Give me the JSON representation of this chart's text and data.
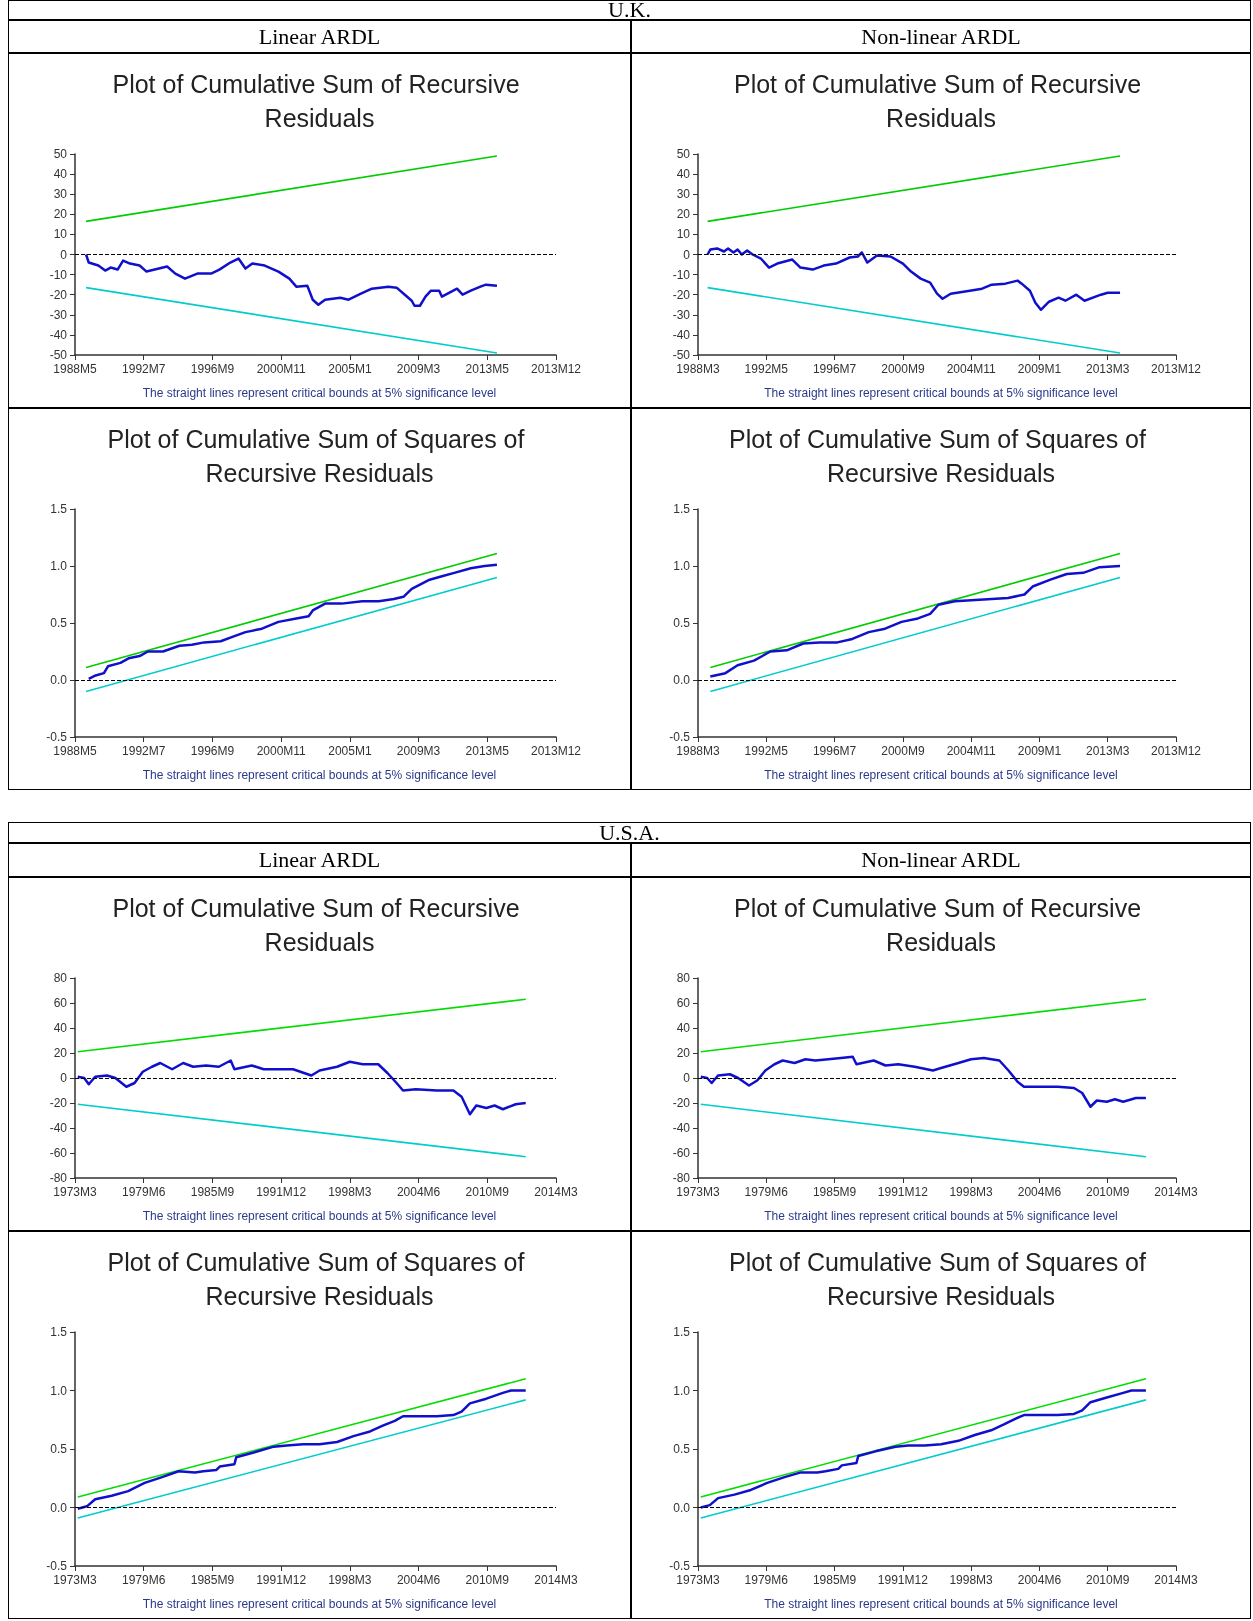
{
  "chart_data": [
    {
      "type": "other",
      "title": "U.K."
    },
    {
      "type": "other",
      "title": "Linear ARDL"
    },
    {
      "type": "other",
      "title": "Non-linear ARDL"
    },
    {
      "type": "line",
      "title": "Plot of Cumulative Sum of Recursive Residuals",
      "marker": "none",
      "xlim": [
        "1988-05",
        "2017-07"
      ],
      "xticks": [
        {
          "value": "1988-05",
          "label": "1988M5"
        },
        {
          "value": "1992-07",
          "label": "1992M7"
        },
        {
          "value": "1996-09",
          "label": "1996M9"
        },
        {
          "value": "2000-11",
          "label": "2000M11"
        },
        {
          "value": "2005-01",
          "label": "2005M1"
        },
        {
          "value": "2009-03",
          "label": "2009M3"
        },
        {
          "value": "2013-05",
          "label": "2013M5"
        },
        {
          "value": "2017-07",
          "label": null
        }
      ],
      "ylim": [
        -50,
        50
      ],
      "yticks": [
        -50,
        -40,
        -30,
        -20,
        -10,
        0,
        10,
        20,
        30,
        40,
        50
      ],
      "ref_lines": [
        {
          "axis": "y",
          "value": 0,
          "color": "#000000",
          "line_style": "dashed"
        }
      ],
      "annotations": [
        "2013M12",
        "The straight lines represent critical bounds at 5% significance level"
      ],
      "series": [
        {
          "color": "#00cc00",
          "x": [
            "1989-01",
            "2013-12"
          ],
          "values": [
            16.5,
            49
          ]
        },
        {
          "color": "#00cccc",
          "x": [
            "1989-01",
            "2013-12"
          ],
          "values": [
            -16.5,
            -49
          ]
        },
        {
          "color": "#1010cc",
          "x": [
            "1989-01",
            "1989-03",
            "1989-10",
            "1990-03",
            "1990-07",
            "1990-12",
            "1991-04",
            "1991-09",
            "1992-04",
            "1992-09",
            "1993-03",
            "1993-12",
            "1994-06",
            "1995-01",
            "1995-10",
            "1996-08",
            "1997-02",
            "1997-10",
            "1998-04",
            "1998-09",
            "1999-02",
            "1999-11",
            "2000-09",
            "2001-05",
            "2001-10",
            "2002-06",
            "2002-10",
            "2003-02",
            "2003-07",
            "2004-06",
            "2004-12",
            "2005-09",
            "2006-05",
            "2007-05",
            "2007-11",
            "2008-05",
            "2008-10",
            "2008-12",
            "2009-04",
            "2009-08",
            "2009-12",
            "2010-06",
            "2010-08",
            "2011-07",
            "2011-11",
            "2012-05",
            "2012-12",
            "2013-04",
            "2013-12"
          ],
          "values": [
            0,
            -4,
            -5.5,
            -8,
            -6.5,
            -7.5,
            -3,
            -4.5,
            -5.5,
            -8.5,
            -7.5,
            -6,
            -9.5,
            -12,
            -9.5,
            -9.5,
            -7.5,
            -4,
            -2,
            -7,
            -4.5,
            -5.5,
            -8.5,
            -12,
            -16,
            -15.5,
            -22.5,
            -25,
            -22.5,
            -21.5,
            -22.5,
            -19.5,
            -17,
            -16,
            -16.5,
            -20,
            -23,
            -25.5,
            -25.5,
            -21,
            -18,
            -18,
            -21,
            -17,
            -20,
            -18,
            -16,
            -15,
            -15.5
          ]
        }
      ]
    },
    {
      "type": "line",
      "title": "Plot of Cumulative Sum of Recursive Residuals",
      "marker": "none",
      "xlim": [
        "1988-03",
        "2017-05"
      ],
      "xticks": [
        {
          "value": "1988-03",
          "label": "1988M3"
        },
        {
          "value": "1992-05",
          "label": "1992M5"
        },
        {
          "value": "1996-07",
          "label": "1996M7"
        },
        {
          "value": "2000-09",
          "label": "2000M9"
        },
        {
          "value": "2004-11",
          "label": "2004M11"
        },
        {
          "value": "2009-01",
          "label": "2009M1"
        },
        {
          "value": "2013-03",
          "label": "2013M3"
        },
        {
          "value": "2017-05",
          "label": null
        }
      ],
      "ylim": [
        -50,
        50
      ],
      "yticks": [
        -50,
        -40,
        -30,
        -20,
        -10,
        0,
        10,
        20,
        30,
        40,
        50
      ],
      "ref_lines": [
        {
          "axis": "y",
          "value": 0,
          "color": "#000000",
          "line_style": "dashed"
        }
      ],
      "annotations": [
        "2013M12",
        "The straight lines represent critical bounds at 5% significance level"
      ],
      "series": [
        {
          "color": "#00cc00",
          "x": [
            "1988-10",
            "2013-12"
          ],
          "values": [
            16.5,
            49
          ]
        },
        {
          "color": "#00cccc",
          "x": [
            "1988-10",
            "2013-12"
          ],
          "values": [
            -16.5,
            -49
          ]
        },
        {
          "color": "#1010cc",
          "x": [
            "1988-10",
            "1988-12",
            "1989-05",
            "1989-10",
            "1990-01",
            "1990-05",
            "1990-08",
            "1990-11",
            "1991-03",
            "1991-07",
            "1992-01",
            "1992-07",
            "1993-01",
            "1993-12",
            "1994-06",
            "1995-03",
            "1995-11",
            "1996-08",
            "1997-06",
            "1997-12",
            "1998-03",
            "1998-07",
            "1999-02",
            "1999-12",
            "2000-09",
            "2001-03",
            "2001-10",
            "2002-05",
            "2002-10",
            "2003-02",
            "2003-08",
            "2004-10",
            "2005-07",
            "2006-02",
            "2006-12",
            "2007-09",
            "2007-12",
            "2008-06",
            "2008-10",
            "2009-02",
            "2009-08",
            "2010-03",
            "2010-08",
            "2011-04",
            "2011-10",
            "2012-10",
            "2013-03",
            "2013-12"
          ],
          "values": [
            0,
            2.5,
            3,
            1.5,
            3,
            1,
            2.5,
            0,
            2,
            0,
            -2,
            -6.5,
            -4.5,
            -2.5,
            -6.5,
            -7.5,
            -5.5,
            -4.5,
            -1.5,
            -1,
            1,
            -4,
            -0.5,
            -1,
            -4.5,
            -8.5,
            -12,
            -14,
            -19.5,
            -22,
            -19.5,
            -18,
            -17,
            -15,
            -14.5,
            -13,
            -14.5,
            -18,
            -24,
            -27.5,
            -23.5,
            -21.5,
            -23,
            -20,
            -23,
            -20,
            -19,
            -19
          ]
        }
      ]
    },
    {
      "type": "line",
      "title": "Plot of Cumulative Sum of Squares of Recursive Residuals",
      "marker": "none",
      "xlim": [
        "1988-05",
        "2017-07"
      ],
      "xticks": [
        {
          "value": "1988-05",
          "label": "1988M5"
        },
        {
          "value": "1992-07",
          "label": "1992M7"
        },
        {
          "value": "1996-09",
          "label": "1996M9"
        },
        {
          "value": "2000-11",
          "label": "2000M11"
        },
        {
          "value": "2005-01",
          "label": "2005M1"
        },
        {
          "value": "2009-03",
          "label": "2009M3"
        },
        {
          "value": "2013-05",
          "label": "2013M5"
        },
        {
          "value": "2017-07",
          "label": null
        }
      ],
      "ylim": [
        -0.5,
        1.5
      ],
      "yticks": [
        {
          "value": -0.5,
          "label": "-0.5"
        },
        {
          "value": 0,
          "label": "0.0"
        },
        {
          "value": 0.5,
          "label": "0.5"
        },
        {
          "value": 1,
          "label": "1.0"
        },
        {
          "value": 1.5,
          "label": "1.5"
        }
      ],
      "ref_lines": [
        {
          "axis": "y",
          "value": 0,
          "color": "#000000",
          "line_style": "dashed"
        }
      ],
      "annotations": [
        "2013M12",
        "The straight lines represent critical bounds at 5% significance level"
      ],
      "series": [
        {
          "color": "#00cc00",
          "x": [
            "1989-01",
            "2013-12"
          ],
          "values": [
            0.11,
            1.11
          ]
        },
        {
          "color": "#00cccc",
          "x": [
            "1989-01",
            "2013-12"
          ],
          "values": [
            -0.1,
            0.9
          ]
        },
        {
          "color": "#1010cc",
          "x": [
            "1989-03",
            "1989-08",
            "1990-02",
            "1990-05",
            "1991-02",
            "1991-08",
            "1992-04",
            "1992-10",
            "1993-09",
            "1994-09",
            "1995-06",
            "1996-03",
            "1997-03",
            "1997-12",
            "1998-09",
            "1999-09",
            "2000-09",
            "2001-10",
            "2002-07",
            "2002-10",
            "2003-07",
            "2004-07",
            "2005-10",
            "2006-10",
            "2007-09",
            "2008-04",
            "2008-10",
            "2009-11",
            "2010-08",
            "2011-05",
            "2012-05",
            "2013-03",
            "2013-12"
          ],
          "values": [
            0.01,
            0.04,
            0.06,
            0.12,
            0.15,
            0.19,
            0.21,
            0.25,
            0.25,
            0.3,
            0.31,
            0.33,
            0.34,
            0.38,
            0.42,
            0.45,
            0.51,
            0.54,
            0.56,
            0.61,
            0.67,
            0.67,
            0.69,
            0.69,
            0.71,
            0.73,
            0.8,
            0.88,
            0.91,
            0.94,
            0.98,
            1,
            1.01
          ]
        }
      ]
    },
    {
      "type": "line",
      "title": "Plot of Cumulative Sum of Squares of Recursive Residuals",
      "marker": "none",
      "xlim": [
        "1988-03",
        "2017-05"
      ],
      "xticks": [
        {
          "value": "1988-03",
          "label": "1988M3"
        },
        {
          "value": "1992-05",
          "label": "1992M5"
        },
        {
          "value": "1996-07",
          "label": "1996M7"
        },
        {
          "value": "2000-09",
          "label": "2000M9"
        },
        {
          "value": "2004-11",
          "label": "2004M11"
        },
        {
          "value": "2009-01",
          "label": "2009M1"
        },
        {
          "value": "2013-03",
          "label": "2013M3"
        },
        {
          "value": "2017-05",
          "label": null
        }
      ],
      "ylim": [
        -0.5,
        1.5
      ],
      "yticks": [
        {
          "value": -0.5,
          "label": "-0.5"
        },
        {
          "value": 0,
          "label": "0.0"
        },
        {
          "value": 0.5,
          "label": "0.5"
        },
        {
          "value": 1,
          "label": "1.0"
        },
        {
          "value": 1.5,
          "label": "1.5"
        }
      ],
      "ref_lines": [
        {
          "axis": "y",
          "value": 0,
          "color": "#000000",
          "line_style": "dashed"
        }
      ],
      "annotations": [
        "2013M12",
        "The straight lines represent critical bounds at 5% significance level"
      ],
      "series": [
        {
          "color": "#00cc00",
          "x": [
            "1988-12",
            "2013-12"
          ],
          "values": [
            0.11,
            1.11
          ]
        },
        {
          "color": "#00cccc",
          "x": [
            "1988-12",
            "2013-12"
          ],
          "values": [
            -0.1,
            0.9
          ]
        },
        {
          "color": "#1010cc",
          "x": [
            "1988-12",
            "1989-11",
            "1990-08",
            "1991-08",
            "1992-08",
            "1993-08",
            "1994-08",
            "1995-08",
            "1996-09",
            "1997-08",
            "1998-08",
            "1999-08",
            "2000-08",
            "2001-08",
            "2002-05",
            "2002-11",
            "2003-11",
            "2004-11",
            "2006-02",
            "2007-02",
            "2008-02",
            "2008-08",
            "2009-09",
            "2010-09",
            "2011-09",
            "2012-09",
            "2013-12"
          ],
          "values": [
            0.03,
            0.06,
            0.13,
            0.17,
            0.25,
            0.26,
            0.32,
            0.33,
            0.33,
            0.36,
            0.42,
            0.45,
            0.51,
            0.54,
            0.58,
            0.66,
            0.69,
            0.7,
            0.71,
            0.72,
            0.75,
            0.82,
            0.88,
            0.93,
            0.94,
            0.99,
            1
          ]
        }
      ]
    },
    {
      "type": "other",
      "title": "U.S.A."
    },
    {
      "type": "other",
      "title": "Linear ARDL"
    },
    {
      "type": "other",
      "title": "Non-linear ARDL"
    },
    {
      "type": "line",
      "title": "Plot of Cumulative Sum of Recursive Residuals",
      "marker": "none",
      "xlim": [
        "1973-03",
        "2016-12"
      ],
      "xticks": [
        {
          "value": "1973-03",
          "label": "1973M3"
        },
        {
          "value": "1979-06",
          "label": "1979M6"
        },
        {
          "value": "1985-09",
          "label": "1985M9"
        },
        {
          "value": "1991-12",
          "label": "1991M12"
        },
        {
          "value": "1998-03",
          "label": "1998M3"
        },
        {
          "value": "2004-06",
          "label": "2004M6"
        },
        {
          "value": "2010-09",
          "label": "2010M9"
        },
        {
          "value": "2016-12",
          "label": null
        }
      ],
      "ylim": [
        -80,
        80
      ],
      "yticks": [
        -80,
        -60,
        -40,
        -20,
        0,
        20,
        40,
        60,
        80
      ],
      "ref_lines": [
        {
          "axis": "y",
          "value": 0,
          "color": "#000000",
          "line_style": "dashed"
        }
      ],
      "annotations": [
        "2014M3",
        "The straight lines represent critical bounds at 5% significance level"
      ],
      "series": [
        {
          "color": "#00dd00",
          "x": [
            "1973-06",
            "2014-03"
          ],
          "values": [
            21,
            63
          ]
        },
        {
          "color": "#00cccc",
          "x": [
            "1973-06",
            "2014-03"
          ],
          "values": [
            -21,
            -63
          ]
        },
        {
          "color": "#1010cc",
          "x": [
            "1973-06",
            "1974-01",
            "1974-06",
            "1975-01",
            "1976-02",
            "1976-11",
            "1977-11",
            "1978-08",
            "1979-05",
            "1980-03",
            "1980-12",
            "1982-01",
            "1983-01",
            "1983-12",
            "1985-02",
            "1986-04",
            "1987-05",
            "1987-09",
            "1989-04",
            "1990-05",
            "1991-07",
            "1993-01",
            "1994-09",
            "1995-06",
            "1997-01",
            "1998-03",
            "1999-05",
            "2000-10",
            "2001-08",
            "2002-06",
            "2003-01",
            "2004-03",
            "2006-02",
            "2007-08",
            "2008-05",
            "2009-02",
            "2009-09",
            "2010-08",
            "2011-05",
            "2012-02",
            "2013-04",
            "2014-03"
          ],
          "values": [
            1,
            0,
            -5,
            1,
            2,
            0,
            -7,
            -4,
            5,
            9,
            12,
            7,
            12,
            9,
            10,
            9,
            14,
            7,
            10,
            7,
            7,
            7,
            2,
            6,
            9,
            13,
            11,
            11,
            4,
            -4,
            -10,
            -9,
            -10,
            -10,
            -15,
            -29,
            -22,
            -24,
            -22,
            -25,
            -21,
            -20
          ]
        }
      ]
    },
    {
      "type": "line",
      "title": "Plot of Cumulative Sum of Recursive Residuals",
      "marker": "none",
      "xlim": [
        "1973-03",
        "2016-12"
      ],
      "xticks": [
        {
          "value": "1973-03",
          "label": "1973M3"
        },
        {
          "value": "1979-06",
          "label": "1979M6"
        },
        {
          "value": "1985-09",
          "label": "1985M9"
        },
        {
          "value": "1991-12",
          "label": "1991M12"
        },
        {
          "value": "1998-03",
          "label": "1998M3"
        },
        {
          "value": "2004-06",
          "label": "2004M6"
        },
        {
          "value": "2010-09",
          "label": "2010M9"
        },
        {
          "value": "2016-12",
          "label": null
        }
      ],
      "ylim": [
        -80,
        80
      ],
      "yticks": [
        -80,
        -60,
        -40,
        -20,
        0,
        20,
        40,
        60,
        80
      ],
      "ref_lines": [
        {
          "axis": "y",
          "value": 0,
          "color": "#000000",
          "line_style": "dashed"
        }
      ],
      "annotations": [
        "2014M3",
        "The straight lines represent critical bounds at 5% significance level"
      ],
      "series": [
        {
          "color": "#00dd00",
          "x": [
            "1973-06",
            "2014-03"
          ],
          "values": [
            21,
            63
          ]
        },
        {
          "color": "#00cccc",
          "x": [
            "1973-06",
            "2014-03"
          ],
          "values": [
            -21,
            -63
          ]
        },
        {
          "color": "#1010cc",
          "x": [
            "1973-06",
            "1974-01",
            "1974-06",
            "1975-01",
            "1976-02",
            "1976-11",
            "1977-11",
            "1978-08",
            "1979-05",
            "1980-03",
            "1980-12",
            "1982-01",
            "1983-01",
            "1983-12",
            "1985-02",
            "1986-04",
            "1987-05",
            "1987-09",
            "1989-04",
            "1990-05",
            "1991-07",
            "1993-01",
            "1994-09",
            "1995-06",
            "1997-01",
            "1998-03",
            "1999-05",
            "2000-10",
            "2001-08",
            "2002-06",
            "2003-01",
            "2004-03",
            "2006-02",
            "2007-08",
            "2008-05",
            "2009-02",
            "2009-09",
            "2010-08",
            "2011-05",
            "2012-02",
            "2013-04",
            "2014-03"
          ],
          "values": [
            1,
            0,
            -4,
            2,
            3,
            0,
            -6,
            -2,
            6,
            11,
            14,
            12,
            15,
            14,
            15,
            16,
            17,
            11,
            14,
            10,
            11,
            9,
            6,
            8,
            12,
            15,
            16,
            14,
            6,
            -3,
            -7,
            -7,
            -7,
            -8,
            -12,
            -23,
            -18,
            -19,
            -17,
            -19,
            -16,
            -16
          ]
        }
      ]
    },
    {
      "type": "line",
      "title": "Plot of Cumulative Sum of Squares of Recursive Residuals",
      "marker": "none",
      "xlim": [
        "1973-03",
        "2016-12"
      ],
      "xticks": [
        {
          "value": "1973-03",
          "label": "1973M3"
        },
        {
          "value": "1979-06",
          "label": "1979M6"
        },
        {
          "value": "1985-09",
          "label": "1985M9"
        },
        {
          "value": "1991-12",
          "label": "1991M12"
        },
        {
          "value": "1998-03",
          "label": "1998M3"
        },
        {
          "value": "2004-06",
          "label": "2004M6"
        },
        {
          "value": "2010-09",
          "label": "2010M9"
        },
        {
          "value": "2016-12",
          "label": null
        }
      ],
      "ylim": [
        -0.5,
        1.5
      ],
      "yticks": [
        {
          "value": -0.5,
          "label": "-0.5"
        },
        {
          "value": 0,
          "label": "0.0"
        },
        {
          "value": 0.5,
          "label": "0.5"
        },
        {
          "value": 1,
          "label": "1.0"
        },
        {
          "value": 1.5,
          "label": "1.5"
        }
      ],
      "ref_lines": [
        {
          "axis": "y",
          "value": 0,
          "color": "#000000",
          "line_style": "dashed"
        }
      ],
      "annotations": [
        "2014M3",
        "The straight lines represent critical bounds at 5% significance level"
      ],
      "series": [
        {
          "color": "#00dd00",
          "x": [
            "1973-06",
            "2014-03"
          ],
          "values": [
            0.09,
            1.1
          ]
        },
        {
          "color": "#00cccc",
          "x": [
            "1973-06",
            "2014-03"
          ],
          "values": [
            -0.09,
            0.92
          ]
        },
        {
          "color": "#1010cc",
          "x": [
            "1973-06",
            "1974-04",
            "1975-01",
            "1976-07",
            "1978-01",
            "1979-07",
            "1981-02",
            "1982-08",
            "1984-02",
            "1984-11",
            "1986-01",
            "1986-05",
            "1987-09",
            "1987-11",
            "1989-06",
            "1991-04",
            "1992-06",
            "1993-12",
            "1995-06",
            "1997-01",
            "1998-07",
            "2000-01",
            "2001-03",
            "2002-04",
            "2003-01",
            "2004-07",
            "2006-02",
            "2007-08",
            "2008-05",
            "2009-02",
            "2010-08",
            "2012-02",
            "2012-11",
            "2014-03"
          ],
          "values": [
            -0.01,
            0.01,
            0.07,
            0.1,
            0.14,
            0.21,
            0.26,
            0.31,
            0.3,
            0.31,
            0.32,
            0.35,
            0.37,
            0.43,
            0.47,
            0.52,
            0.53,
            0.54,
            0.54,
            0.56,
            0.61,
            0.65,
            0.7,
            0.74,
            0.78,
            0.78,
            0.78,
            0.79,
            0.82,
            0.89,
            0.93,
            0.98,
            1,
            1
          ]
        }
      ]
    },
    {
      "type": "line",
      "title": "Plot of Cumulative Sum of Squares of Recursive Residuals",
      "marker": "none",
      "xlim": [
        "1973-03",
        "2016-12"
      ],
      "xticks": [
        {
          "value": "1973-03",
          "label": "1973M3"
        },
        {
          "value": "1979-06",
          "label": "1979M6"
        },
        {
          "value": "1985-09",
          "label": "1985M9"
        },
        {
          "value": "1991-12",
          "label": "1991M12"
        },
        {
          "value": "1998-03",
          "label": "1998M3"
        },
        {
          "value": "2004-06",
          "label": "2004M6"
        },
        {
          "value": "2010-09",
          "label": "2010M9"
        },
        {
          "value": "2016-12",
          "label": null
        }
      ],
      "ylim": [
        -0.5,
        1.5
      ],
      "yticks": [
        {
          "value": -0.5,
          "label": "-0.5"
        },
        {
          "value": 0,
          "label": "0.0"
        },
        {
          "value": 0.5,
          "label": "0.5"
        },
        {
          "value": 1,
          "label": "1.0"
        },
        {
          "value": 1.5,
          "label": "1.5"
        }
      ],
      "ref_lines": [
        {
          "axis": "y",
          "value": 0,
          "color": "#000000",
          "line_style": "dashed"
        }
      ],
      "annotations": [
        "2014M3",
        "The straight lines represent critical bounds at 5% significance level"
      ],
      "series": [
        {
          "color": "#00dd00",
          "x": [
            "1973-06",
            "2014-03"
          ],
          "values": [
            0.09,
            1.1
          ]
        },
        {
          "color": "#00cccc",
          "x": [
            "1973-06",
            "2014-03"
          ],
          "values": [
            -0.09,
            0.92
          ]
        },
        {
          "color": "#1010cc",
          "x": [
            "1973-06",
            "1974-04",
            "1975-01",
            "1976-07",
            "1978-01",
            "1979-07",
            "1981-02",
            "1982-08",
            "1984-02",
            "1984-11",
            "1986-01",
            "1986-05",
            "1987-09",
            "1987-11",
            "1989-06",
            "1991-04",
            "1992-06",
            "1993-12",
            "1995-06",
            "1997-01",
            "1998-07",
            "2000-01",
            "2001-03",
            "2002-04",
            "2003-01",
            "2004-07",
            "2006-02",
            "2007-08",
            "2008-05",
            "2009-02",
            "2010-08",
            "2012-02",
            "2012-11",
            "2014-03"
          ],
          "values": [
            0,
            0.02,
            0.08,
            0.11,
            0.15,
            0.21,
            0.26,
            0.3,
            0.3,
            0.31,
            0.33,
            0.36,
            0.38,
            0.44,
            0.48,
            0.52,
            0.53,
            0.53,
            0.54,
            0.57,
            0.62,
            0.66,
            0.71,
            0.76,
            0.79,
            0.79,
            0.79,
            0.8,
            0.83,
            0.9,
            0.94,
            0.98,
            1,
            1
          ]
        }
      ]
    }
  ]
}
